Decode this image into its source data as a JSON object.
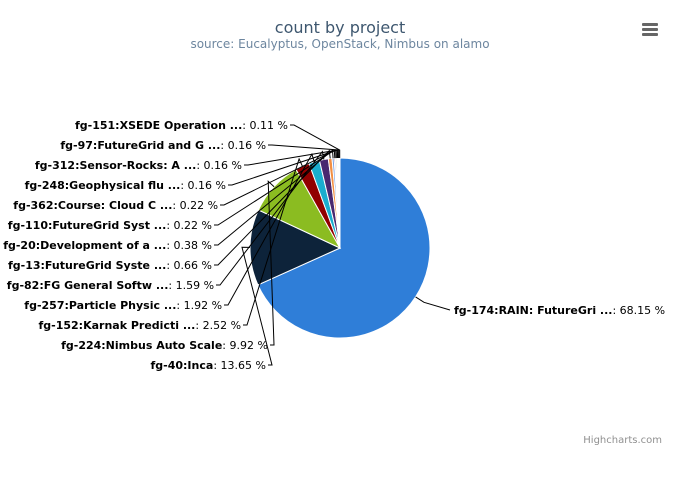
{
  "chart_data": {
    "type": "pie",
    "title": "count by project",
    "subtitle": "source: Eucalyptus, OpenStack, Nimbus on alamo",
    "unit": "%",
    "slices": [
      {
        "label": "fg-174:RAIN: FutureGri ...",
        "value": 68.15,
        "value_text": "68.15",
        "color": "#2f7ed8"
      },
      {
        "label": "fg-40:Inca",
        "value": 13.65,
        "value_text": "13.65",
        "color": "#0d233a"
      },
      {
        "label": "fg-224:Nimbus Auto Scale",
        "value": 9.92,
        "value_text": "9.92",
        "color": "#8bbc21"
      },
      {
        "label": "fg-152:Karnak Predicti ...",
        "value": 2.52,
        "value_text": "2.52",
        "color": "#910000"
      },
      {
        "label": "fg-257:Particle Physic ...",
        "value": 1.92,
        "value_text": "1.92",
        "color": "#1aadce"
      },
      {
        "label": "fg-82:FG General Softw ...",
        "value": 1.59,
        "value_text": "1.59",
        "color": "#492970"
      },
      {
        "label": "fg-13:FutureGrid Syste ...",
        "value": 0.66,
        "value_text": "0.66",
        "color": "#f28f43"
      },
      {
        "label": "fg-20:Development of a ...",
        "value": 0.38,
        "value_text": "0.38",
        "color": "#77a1e5"
      },
      {
        "label": "fg-110:FutureGrid Syst ...",
        "value": 0.22,
        "value_text": "0.22",
        "color": "#c42525"
      },
      {
        "label": "fg-362:Course: Cloud C ...",
        "value": 0.22,
        "value_text": "0.22",
        "color": "#a6c96a"
      },
      {
        "label": "fg-248:Geophysical flu ...",
        "value": 0.16,
        "value_text": "0.16",
        "color": "#2f7ed8"
      },
      {
        "label": "fg-312:Sensor-Rocks: A ...",
        "value": 0.16,
        "value_text": "0.16",
        "color": "#0d233a"
      },
      {
        "label": "fg-97:FutureGrid and G ...",
        "value": 0.16,
        "value_text": "0.16",
        "color": "#8bbc21"
      },
      {
        "label": "fg-151:XSEDE Operation ...",
        "value": 0.11,
        "value_text": "0.11",
        "color": "#910000"
      }
    ]
  },
  "credits": "Highcharts.com",
  "export_menu_icon": "hamburger-menu-icon"
}
